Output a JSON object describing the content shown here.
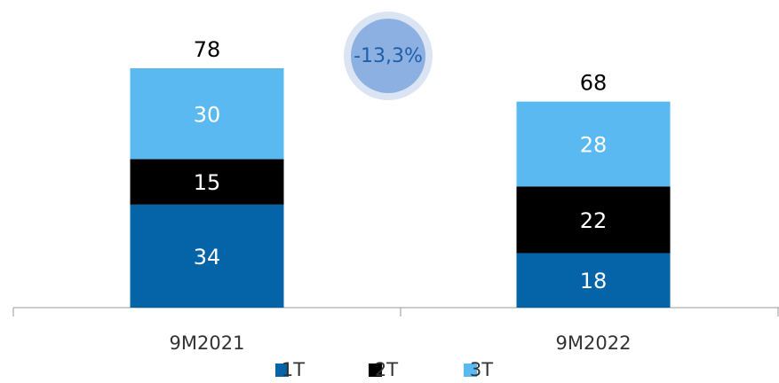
{
  "chart_data": {
    "type": "stacked_bar",
    "categories": [
      "9M2021",
      "9M2022"
    ],
    "series": [
      {
        "name": "1T",
        "color": "#0563a8",
        "values": [
          34,
          18
        ]
      },
      {
        "name": "2T",
        "color": "#000000",
        "values": [
          15,
          22
        ]
      },
      {
        "name": "3T",
        "color": "#5ab9f0",
        "values": [
          30,
          28
        ]
      }
    ],
    "totals": [
      78,
      68
    ],
    "annotation": "-13,3%",
    "legend": "bottom"
  }
}
